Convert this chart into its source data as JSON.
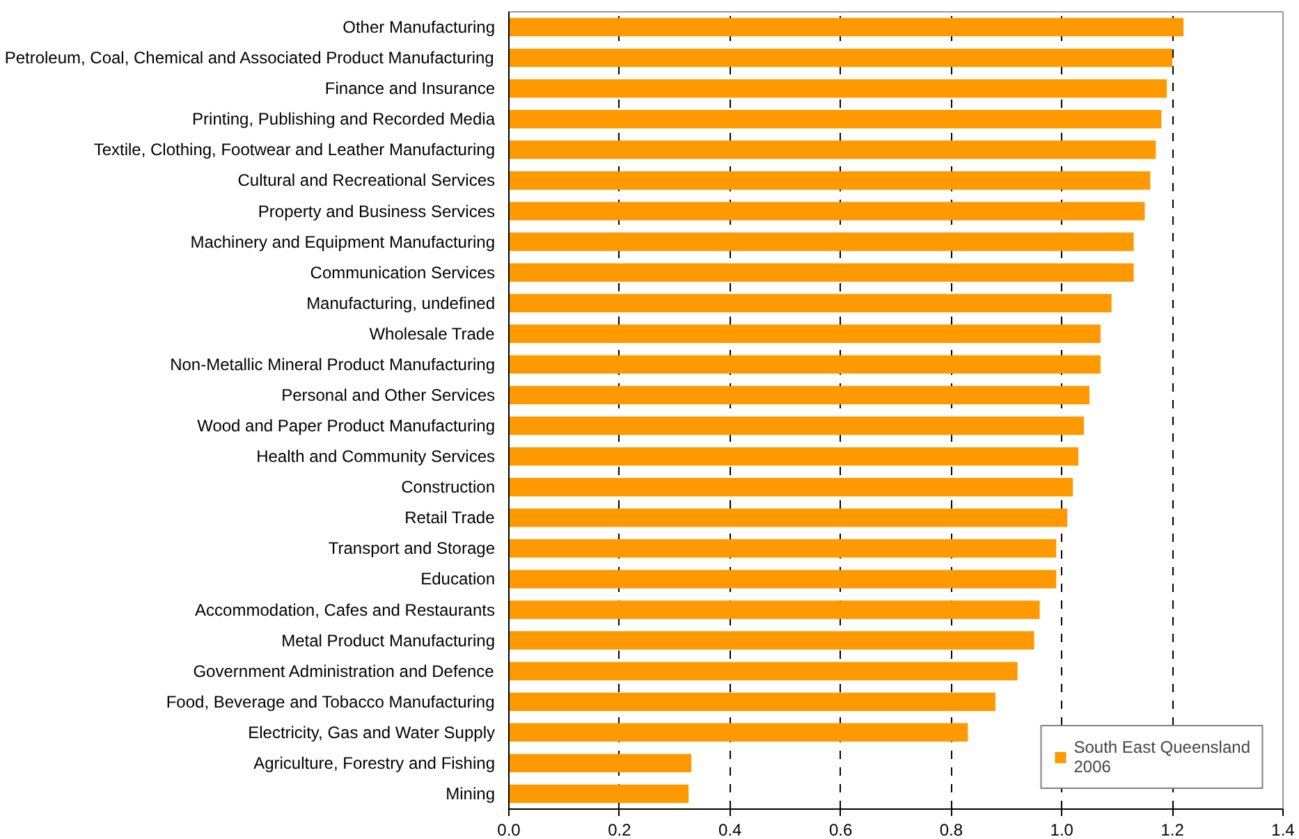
{
  "chart_data": {
    "type": "bar",
    "orientation": "horizontal",
    "categories": [
      "Other Manufacturing",
      "Petroleum, Coal, Chemical and Associated Product Manufacturing",
      "Finance and Insurance",
      "Printing, Publishing and Recorded Media",
      "Textile, Clothing, Footwear and Leather Manufacturing",
      "Cultural and Recreational Services",
      "Property and Business Services",
      "Machinery and Equipment Manufacturing",
      "Communication Services",
      "Manufacturing, undefined",
      "Wholesale Trade",
      "Non-Metallic Mineral Product Manufacturing",
      "Personal and Other Services",
      "Wood and Paper Product Manufacturing",
      "Health and Community Services",
      "Construction",
      "Retail Trade",
      "Transport and Storage",
      "Education",
      "Accommodation, Cafes and Restaurants",
      "Metal Product Manufacturing",
      "Government Administration and Defence",
      "Food, Beverage and Tobacco Manufacturing",
      "Electricity, Gas and Water Supply",
      "Agriculture, Forestry and Fishing",
      "Mining"
    ],
    "series": [
      {
        "name": "South East Queensland\n2006",
        "color": "#ff9900",
        "values": [
          1.22,
          1.2,
          1.19,
          1.18,
          1.17,
          1.16,
          1.15,
          1.13,
          1.13,
          1.09,
          1.07,
          1.07,
          1.05,
          1.04,
          1.03,
          1.02,
          1.01,
          0.99,
          0.99,
          0.96,
          0.95,
          0.92,
          0.88,
          0.83,
          0.33,
          0.325
        ]
      }
    ],
    "xlim": [
      0,
      1.4
    ],
    "xticks": [
      {
        "value": 0,
        "label": "0.0"
      },
      {
        "value": 0.2,
        "label": "0.2"
      },
      {
        "value": 0.4,
        "label": "0.4"
      },
      {
        "value": 0.6,
        "label": "0.6"
      },
      {
        "value": 0.8,
        "label": "0.8"
      },
      {
        "value": 1.0,
        "label": "1.0"
      },
      {
        "value": 1.2,
        "label": "1.2"
      },
      {
        "value": 1.4,
        "label": "1.4"
      }
    ],
    "grid": "x",
    "legend": "bottom right"
  }
}
